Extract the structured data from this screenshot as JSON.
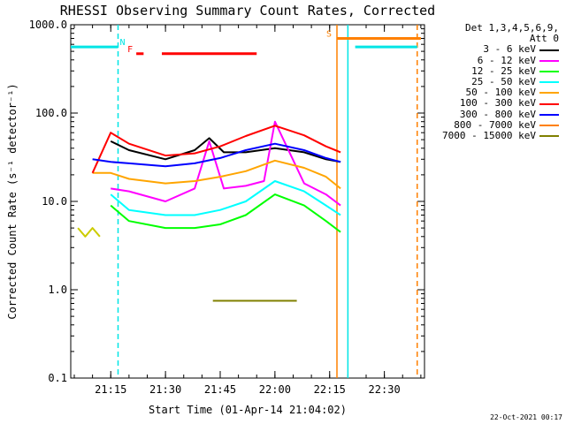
{
  "chart_data": {
    "type": "line",
    "title": "RHESSI Observing Summary Count Rates, Corrected",
    "xlabel": "Start Time (01-Apr-14 21:04:02)",
    "ylabel": "Corrected Count Rate (s⁻¹ detector⁻¹)",
    "y_scale": "log",
    "ylim": [
      0.1,
      1000
    ],
    "xlim": [
      "21:04:02",
      "22:41:00"
    ],
    "x_tick_labels": [
      "21:15",
      "21:30",
      "21:45",
      "22:00",
      "22:15",
      "22:30"
    ],
    "y_tick_labels": [
      "0.1",
      "1.0",
      "10.0",
      "100.0",
      "1000.0"
    ],
    "grid": false,
    "legend": {
      "placement": "top-right, outside plot",
      "header": [
        "Det 1,3,4,5,6,9,",
        "Att 0"
      ],
      "entries": [
        "3 - 6 keV",
        "6 - 12 keV",
        "12 - 25 keV",
        "25 - 50 keV",
        "50 - 100 keV",
        "100 - 300 keV",
        "300 - 800 keV",
        "800 - 7000 keV",
        "7000 - 15000 keV"
      ]
    },
    "series": [
      {
        "name": "3 - 6 keV",
        "color": "#000000",
        "x": [
          "21:15",
          "21:20",
          "21:30",
          "21:38",
          "21:42",
          "21:46",
          "21:52",
          "22:00",
          "22:08",
          "22:14",
          "22:18"
        ],
        "y": [
          48,
          38,
          30,
          38,
          52,
          36,
          36,
          40,
          36,
          30,
          28
        ]
      },
      {
        "name": "6 - 12 keV",
        "color": "#ff00ff",
        "x": [
          "21:15",
          "21:20",
          "21:30",
          "21:38",
          "21:42",
          "21:46",
          "21:52",
          "21:57",
          "22:00",
          "22:08",
          "22:14",
          "22:18"
        ],
        "y": [
          14,
          13,
          10,
          14,
          48,
          14,
          15,
          17,
          80,
          16,
          12,
          9
        ]
      },
      {
        "name": "12 - 25 keV",
        "color": "#00ff00",
        "x": [
          "21:15",
          "21:20",
          "21:30",
          "21:38",
          "21:45",
          "21:52",
          "22:00",
          "22:08",
          "22:14",
          "22:18"
        ],
        "y": [
          9,
          6,
          5,
          5,
          5.5,
          7,
          12,
          9,
          6,
          4.5
        ]
      },
      {
        "name": "25 - 50 keV",
        "color": "#00ffff",
        "x": [
          "21:15",
          "21:20",
          "21:30",
          "21:38",
          "21:45",
          "21:52",
          "22:00",
          "22:08",
          "22:14",
          "22:18"
        ],
        "y": [
          12,
          8,
          7,
          7,
          8,
          10,
          17,
          13,
          9,
          7
        ]
      },
      {
        "name": "50 - 100 keV",
        "color": "#ffa500",
        "x": [
          "21:10",
          "21:15",
          "21:20",
          "21:30",
          "21:38",
          "21:45",
          "21:52",
          "22:00",
          "22:08",
          "22:14",
          "22:18"
        ],
        "y": [
          21,
          21,
          18,
          16,
          17,
          19,
          22,
          29,
          24,
          19,
          14
        ]
      },
      {
        "name": "100 - 300 keV",
        "color": "#ff0000",
        "x": [
          "21:10",
          "21:15",
          "21:20",
          "21:30",
          "21:38",
          "21:45",
          "21:52",
          "22:00",
          "22:08",
          "22:14",
          "22:18"
        ],
        "y": [
          21,
          60,
          45,
          33,
          35,
          42,
          55,
          72,
          56,
          42,
          36
        ]
      },
      {
        "name": "300 - 800 keV",
        "color": "#0000ff",
        "x": [
          "21:10",
          "21:15",
          "21:20",
          "21:30",
          "21:38",
          "21:45",
          "21:52",
          "22:00",
          "22:08",
          "22:14",
          "22:18"
        ],
        "y": [
          30,
          28,
          27,
          25,
          27,
          31,
          38,
          45,
          38,
          31,
          28
        ]
      },
      {
        "name": "800 - 7000 keV",
        "color": "#cccc00",
        "x": [
          "21:06",
          "21:08",
          "21:10",
          "21:12"
        ],
        "y": [
          5,
          4,
          5,
          4
        ]
      },
      {
        "name": "7000 - 15000 keV",
        "color": "#808000",
        "x": [
          "21:43",
          "21:50",
          "22:04",
          "22:06"
        ],
        "y": [
          0.75,
          0.75,
          0.75,
          0.75
        ]
      }
    ],
    "flags": [
      {
        "label": "N",
        "color": "#00e5e5",
        "x": [
          "21:04:02",
          "21:17"
        ],
        "y": 560
      },
      {
        "label": "N",
        "color": "#00e5e5",
        "x": [
          "22:22",
          "22:39"
        ],
        "y": 560
      },
      {
        "label": "F",
        "color": "#ff0000",
        "x": [
          "21:22",
          "21:24"
        ],
        "y": 470
      },
      {
        "label": "F",
        "color": "#ff0000",
        "x": [
          "21:29",
          "21:55"
        ],
        "y": 470
      },
      {
        "label": "S",
        "color": "#ff8000",
        "x": [
          "22:17",
          "22:40"
        ],
        "y": 700
      }
    ],
    "markers_label": {
      "N": "N",
      "F": "F",
      "S": "S"
    },
    "vertical_lines": [
      {
        "x": "21:17",
        "color": "#00e5e5",
        "style": "dashed"
      },
      {
        "x": "22:17",
        "color": "#ff8000",
        "style": "solid"
      },
      {
        "x": "22:20",
        "color": "#00e5e5",
        "style": "solid"
      },
      {
        "x": "22:39",
        "color": "#ff8000",
        "style": "dashed"
      }
    ]
  },
  "colors": {
    "swatches": [
      "#000000",
      "#ff00ff",
      "#00ff00",
      "#00ffff",
      "#ffa500",
      "#ff0000",
      "#0000ff",
      "#ff8000",
      "#808000"
    ]
  },
  "footer": {
    "timestamp": "22-Oct-2021 00:17"
  }
}
